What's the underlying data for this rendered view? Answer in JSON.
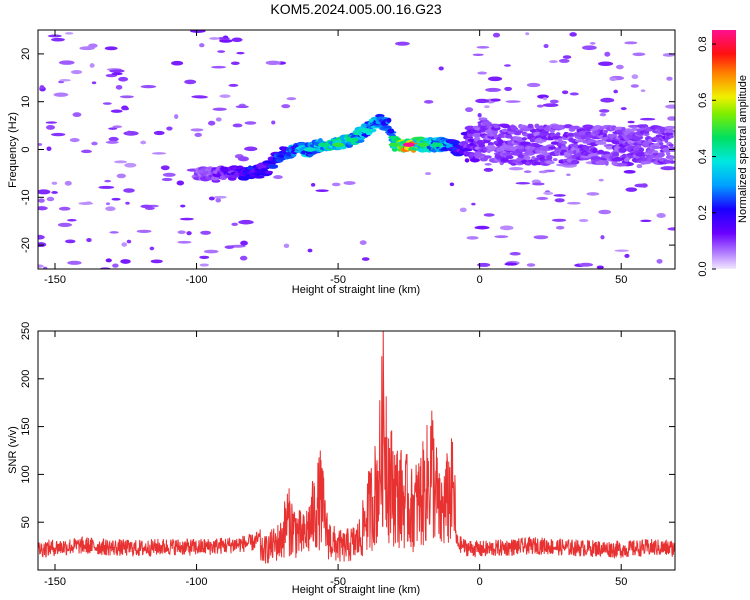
{
  "title": "KOM5.2024.005.00.16.G23",
  "chart_data": [
    {
      "type": "heatmap",
      "xlabel": "Height of straight line (km)",
      "ylabel": "Frequency (Hz)",
      "xlim": [
        -156,
        69
      ],
      "ylim": [
        -25,
        25
      ],
      "xticks": [
        -150,
        -100,
        -50,
        0,
        50
      ],
      "yticks": [
        -20,
        -10,
        0,
        10,
        20
      ],
      "colorbar": {
        "label": "Normalized spectral amplitude",
        "range": [
          0.0,
          0.85
        ],
        "ticks": [
          0.0,
          0.2,
          0.4,
          0.6,
          0.8
        ],
        "colormap": "rainbow (violet to red to magenta)"
      },
      "signal_track": {
        "x_km": [
          -100,
          -90,
          -80,
          -75,
          -70,
          -65,
          -60,
          -55,
          -50,
          -45,
          -40,
          -35,
          -32,
          -30,
          -25,
          -20,
          -15,
          -10,
          -7,
          0,
          10,
          20,
          30,
          40,
          50,
          60,
          68
        ],
        "freq_hz": [
          -5,
          -5,
          -5,
          -4,
          -1,
          0,
          0,
          1,
          1,
          2,
          4,
          6,
          5,
          1,
          1,
          1,
          1,
          1,
          0,
          2,
          1,
          1,
          1,
          1,
          1,
          1,
          1
        ],
        "peak_amplitude": [
          0.1,
          0.15,
          0.25,
          0.2,
          0.3,
          0.35,
          0.4,
          0.45,
          0.5,
          0.45,
          0.4,
          0.35,
          0.3,
          0.5,
          0.85,
          0.5,
          0.45,
          0.35,
          0.2,
          0.12,
          0.12,
          0.12,
          0.12,
          0.12,
          0.12,
          0.12,
          0.12
        ]
      }
    },
    {
      "type": "line",
      "xlabel": "Height of straight line (km)",
      "ylabel": "SNR (v/v)",
      "xlim": [
        -156,
        69
      ],
      "ylim": [
        0,
        250
      ],
      "xticks": [
        -150,
        -100,
        -50,
        0,
        50
      ],
      "yticks": [
        50,
        100,
        150,
        200,
        250
      ],
      "color": "#e83232",
      "series": [
        {
          "x": [
            -156,
            -150,
            -140,
            -130,
            -120,
            -110,
            -100,
            -90,
            -80,
            -75,
            -70,
            -68,
            -66,
            -64,
            -62,
            -60,
            -58,
            -56,
            -54,
            -52,
            -50,
            -48,
            -46,
            -44,
            -42,
            -40,
            -38,
            -36,
            -35,
            -34,
            -33,
            -32,
            -30,
            -28,
            -26,
            -24,
            -22,
            -20,
            -18,
            -17,
            -16,
            -15,
            -14,
            -12,
            -10,
            -9,
            -8,
            -5,
            0,
            10,
            20,
            30,
            40,
            50,
            60,
            69
          ],
          "y": [
            18,
            20,
            22,
            20,
            19,
            21,
            20,
            22,
            25,
            35,
            50,
            85,
            70,
            60,
            55,
            75,
            100,
            120,
            60,
            45,
            40,
            38,
            42,
            45,
            55,
            90,
            110,
            140,
            180,
            250,
            210,
            150,
            130,
            120,
            115,
            100,
            110,
            125,
            150,
            180,
            140,
            120,
            90,
            110,
            130,
            120,
            25,
            20,
            18,
            20,
            22,
            20,
            19,
            18,
            20,
            19
          ]
        }
      ]
    }
  ]
}
